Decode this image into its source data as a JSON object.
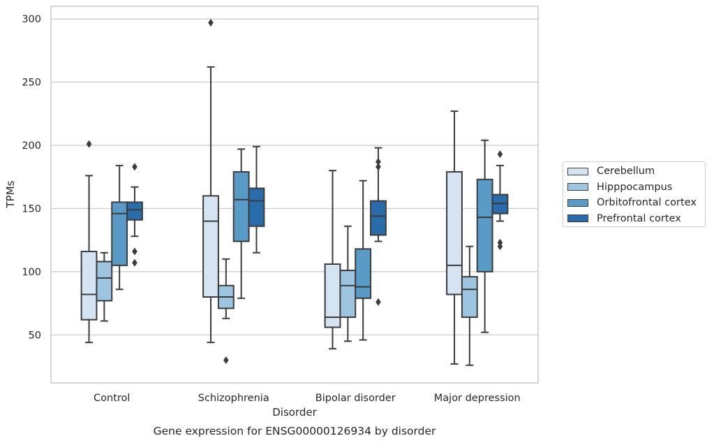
{
  "chart_data": {
    "type": "boxplot",
    "title": "Gene expression for ENSG00000126934 by disorder",
    "xlabel": "Disorder",
    "ylabel": "TPMs",
    "ylim": [
      12,
      310
    ],
    "yticks": [
      50,
      100,
      150,
      200,
      250,
      300
    ],
    "grid": "horizontal",
    "legend_position": "right",
    "categories": [
      "Control",
      "Schizophrenia",
      "Bipolar disorder",
      "Major depression"
    ],
    "series": [
      {
        "name": "Cerebellum",
        "color": "#d5e4f3",
        "boxes": [
          {
            "whislo": 44,
            "q1": 62,
            "med": 82,
            "q3": 116,
            "whishi": 176,
            "fliers": [
              201
            ]
          },
          {
            "whislo": 44,
            "q1": 80,
            "med": 140,
            "q3": 160,
            "whishi": 262,
            "fliers": [
              297
            ]
          },
          {
            "whislo": 39,
            "q1": 56,
            "med": 64,
            "q3": 106,
            "whishi": 180,
            "fliers": []
          },
          {
            "whislo": 27,
            "q1": 82,
            "med": 105,
            "q3": 179,
            "whishi": 227,
            "fliers": []
          }
        ]
      },
      {
        "name": "Hipppocampus",
        "color": "#9ec5df",
        "boxes": [
          {
            "whislo": 61,
            "q1": 77,
            "med": 95,
            "q3": 108,
            "whishi": 115,
            "fliers": []
          },
          {
            "whislo": 63,
            "q1": 71,
            "med": 80,
            "q3": 89,
            "whishi": 110,
            "fliers": [
              30
            ]
          },
          {
            "whislo": 45,
            "q1": 64,
            "med": 89,
            "q3": 101,
            "whishi": 136,
            "fliers": []
          },
          {
            "whislo": 26,
            "q1": 64,
            "med": 86,
            "q3": 96,
            "whishi": 120,
            "fliers": []
          }
        ]
      },
      {
        "name": "Orbitofrontal cortex",
        "color": "#5a9ac6",
        "boxes": [
          {
            "whislo": 86,
            "q1": 105,
            "med": 146,
            "q3": 155,
            "whishi": 184,
            "fliers": []
          },
          {
            "whislo": 79,
            "q1": 124,
            "med": 157,
            "q3": 179,
            "whishi": 197,
            "fliers": []
          },
          {
            "whislo": 46,
            "q1": 79,
            "med": 88,
            "q3": 118,
            "whishi": 172,
            "fliers": []
          },
          {
            "whislo": 52,
            "q1": 100,
            "med": 143,
            "q3": 173,
            "whishi": 204,
            "fliers": []
          }
        ]
      },
      {
        "name": "Prefrontal cortex",
        "color": "#2a6ba9",
        "boxes": [
          {
            "whislo": 128,
            "q1": 141,
            "med": 149,
            "q3": 155,
            "whishi": 167,
            "fliers": [
              183,
              116,
              107
            ]
          },
          {
            "whislo": 115,
            "q1": 136,
            "med": 156,
            "q3": 166,
            "whishi": 199,
            "fliers": []
          },
          {
            "whislo": 124,
            "q1": 129,
            "med": 144,
            "q3": 156,
            "whishi": 198,
            "fliers": [
              187,
              183,
              76
            ]
          },
          {
            "whislo": 140,
            "q1": 146,
            "med": 154,
            "q3": 161,
            "whishi": 184,
            "fliers": [
              193,
              123,
              120
            ]
          }
        ]
      }
    ]
  }
}
